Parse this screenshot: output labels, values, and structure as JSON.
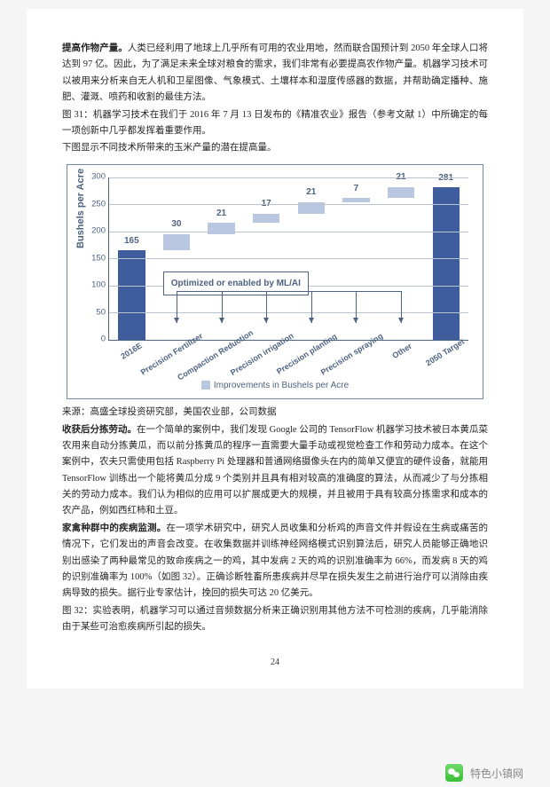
{
  "paras": [
    {
      "lead_bold": "提高作物产量。",
      "rest": "人类已经利用了地球上几乎所有可用的农业用地，然而联合国预计到 2050 年全球人口将达到 97 亿。因此，为了满足未来全球对粮食的需求，我们非常有必要提高农作物产量。机器学习技术可以被用来分析来自无人机和卫星图像、气象模式、土壤样本和湿度传感器的数据，并帮助确定播种、施肥、灌溉、喷药和收割的最佳方法。"
    },
    {
      "text": "图 31：机器学习技术在我们于 2016 年 7 月 13 日发布的《精准农业》报告（参考文献 1）中所确定的每一项创新中几乎都发挥着重要作用。"
    },
    {
      "text": "下图显示不同技术所带来的玉米产量的潜在提高量。"
    }
  ],
  "chart": {
    "type": "bar",
    "ylabel": "Bushels per Acre",
    "ymin": 0,
    "ymax": 300,
    "ystep": 50,
    "categories": [
      "2016E",
      "Precision Fertilizer",
      "Compaction Reduction",
      "Precision irrigation",
      "Precision planting",
      "Precision spraying",
      "Other",
      "2050 Target"
    ],
    "values": [
      165,
      30,
      21,
      17,
      21,
      7,
      21,
      281
    ],
    "bar_bottoms": [
      0,
      165,
      195,
      216,
      233,
      254,
      261,
      0
    ],
    "colors": [
      "#3f5d9c",
      "#b9c7e0",
      "#b9c7e0",
      "#b9c7e0",
      "#b9c7e0",
      "#b9c7e0",
      "#b9c7e0",
      "#3f5d9c"
    ],
    "annotation": "Optimized or enabled by ML/AI",
    "legend_label": "Improvements in Bushels per Acre",
    "legend_color": "#b9c7e0",
    "grid_color": "#b9c4d0",
    "axis_color": "#4d6380",
    "bg": "#ffffff"
  },
  "source": "来源：高盛全球投资研究部，美国农业部，公司数据",
  "after": [
    {
      "lead_bold": "收获后分拣劳动。",
      "rest": "在一个简单的案例中，我们发现 Google 公司的 TensorFlow 机器学习技术被日本黄瓜菜农用来自动分拣黄瓜，而以前分拣黄瓜的程序一直需要大量手动或视觉检查工作和劳动力成本。在这个案例中，农夫只需使用包括 Raspberry Pi 处理器和普通网络摄像头在内的简单又便宜的硬件设备，就能用 TensorFlow 训练出一个能将黄瓜分成 9 个类别并且具有相对较高的准确度的算法，从而减少了与分拣相关的劳动力成本。我们认为相似的应用可以扩展成更大的规模，并且被用于具有较高分拣需求和成本的农产品，例如西红柿和土豆。"
    },
    {
      "lead_bold": "家禽种群中的疾病监测。",
      "rest": "在一项学术研究中，研究人员收集和分析鸡的声音文件并假设在生病或痛苦的情况下，它们发出的声音会改变。在收集数据并训练神经网络模式识别算法后，研究人员能够正确地识别出感染了两种最常见的致命疾病之一的鸡，其中发病 2 天的鸡的识别准确率为 66%，而发病 8 天的鸡的识别准确率为 100%（如图 32）。正确诊断牲畜所患疾病并尽早在损失发生之前进行治疗可以消除由疾病导致的损失。据行业专家估计，挽回的损失可达 20 亿美元。"
    },
    {
      "text": "图 32：实验表明，机器学习可以通过音频数据分析来正确识别用其他方法不可检测的疾病，几乎能消除由于某些可治愈疾病所引起的损失。"
    }
  ],
  "page_number": "24",
  "footer": "特色小镇网"
}
